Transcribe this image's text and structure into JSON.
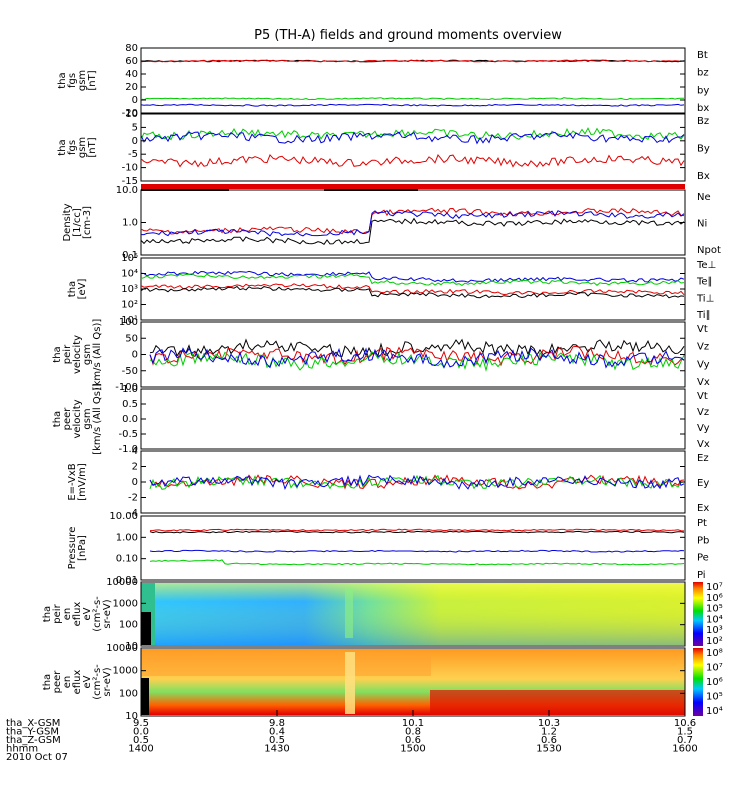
{
  "title": "P5 (TH-A) fields and ground moments overview",
  "colors": {
    "black": "#000000",
    "red": "#e00000",
    "green": "#00cc00",
    "blue": "#0000dd"
  },
  "chart_data": [
    {
      "type": "line",
      "panel": "fgs_gsm",
      "ylabel": [
        "tha",
        "fgs",
        "gsm",
        "[nT]"
      ],
      "yticks": [
        "80",
        "60",
        "40",
        "20",
        "0",
        "-20"
      ],
      "legend": [
        {
          "label": "Bt",
          "color": "black"
        },
        {
          "label": "bz",
          "color": "red"
        },
        {
          "label": "by",
          "color": "green"
        },
        {
          "label": "bx",
          "color": "blue"
        }
      ],
      "series": [
        {
          "name": "Bt",
          "level": 58
        },
        {
          "name": "bz",
          "level": 57
        },
        {
          "name": "by",
          "level": 2
        },
        {
          "name": "bx",
          "level": -3
        }
      ]
    },
    {
      "type": "line",
      "panel": "fgs_gsm_detail",
      "ylabel": [
        "tha",
        "fgs",
        "gsm",
        "[nT]"
      ],
      "yticks": [
        "10",
        "5",
        "0",
        "-5",
        "-10",
        "-15"
      ],
      "legend": [
        {
          "label": "Bz",
          "color": "red"
        },
        {
          "label": "By",
          "color": "green"
        },
        {
          "label": "Bx",
          "color": "blue"
        }
      ],
      "series": [
        {
          "name": "Bz",
          "level": -5
        },
        {
          "name": "By",
          "level": 1
        },
        {
          "name": "Bx",
          "level": 0
        }
      ]
    },
    {
      "type": "line",
      "panel": "density",
      "ylabel": [
        "Density",
        "[1/cc]",
        "[cm-3]"
      ],
      "yticks": [
        "10.0",
        "1.0",
        "0.1"
      ],
      "legend": [
        {
          "label": "Ne",
          "color": "red"
        },
        {
          "label": "Ni",
          "color": "black"
        },
        {
          "label": "Npot",
          "color": "blue"
        }
      ],
      "series": [
        {
          "name": "Ne",
          "level": 0.9
        },
        {
          "name": "Ni",
          "level": 0.5
        },
        {
          "name": "Npot",
          "level": 0.8
        }
      ]
    },
    {
      "type": "line",
      "panel": "temperature",
      "ylabel": [
        "tha",
        "[eV]"
      ],
      "yticks": [
        "10⁵",
        "10⁴",
        "10³",
        "10²",
        "10¹"
      ],
      "legend": [
        {
          "label": "Te⊥",
          "color": "red"
        },
        {
          "label": "Te∥",
          "color": "black"
        },
        {
          "label": "Ti⊥",
          "color": "blue"
        },
        {
          "label": "Ti∥",
          "color": "green"
        }
      ],
      "series": [
        {
          "name": "Te⊥",
          "level": 600
        },
        {
          "name": "Te∥",
          "level": 500
        },
        {
          "name": "Ti⊥",
          "level": 2500
        },
        {
          "name": "Ti∥",
          "level": 2000
        }
      ]
    },
    {
      "type": "line",
      "panel": "peir_velocity",
      "ylabel": [
        "tha",
        "peir",
        "velocity",
        "gsm",
        "[km/s (All Qs)]"
      ],
      "yticks": [
        "100",
        "50",
        "0",
        "-50",
        "-100"
      ],
      "legend": [
        {
          "label": "Vt",
          "color": "black"
        },
        {
          "label": "Vz",
          "color": "red"
        },
        {
          "label": "Vy",
          "color": "green"
        },
        {
          "label": "Vx",
          "color": "blue"
        }
      ],
      "series": [
        {
          "name": "Vt",
          "level": 20
        },
        {
          "name": "Vz",
          "level": 0
        },
        {
          "name": "Vy",
          "level": -5
        },
        {
          "name": "Vx",
          "level": 5
        }
      ]
    },
    {
      "type": "line",
      "panel": "peer_velocity",
      "ylabel": [
        "tha",
        "peer",
        "velocity",
        "gsm",
        "[km/s (All Qs)]"
      ],
      "yticks": [
        "1.0",
        "0.5",
        "0.0",
        "-0.5",
        "-1.0"
      ],
      "legend": [
        {
          "label": "Vt",
          "color": "black"
        },
        {
          "label": "Vz",
          "color": "red"
        },
        {
          "label": "Vy",
          "color": "green"
        },
        {
          "label": "Vx",
          "color": "blue"
        }
      ],
      "series": []
    },
    {
      "type": "line",
      "panel": "efield",
      "ylabel": [
        "E=-VxB",
        "[mV/m]"
      ],
      "yticks": [
        "4",
        "2",
        "0",
        "-2",
        "-4"
      ],
      "legend": [
        {
          "label": "Ez",
          "color": "red"
        },
        {
          "label": "Ey",
          "color": "green"
        },
        {
          "label": "Ex",
          "color": "blue"
        }
      ],
      "series": [
        {
          "name": "Ez",
          "level": 0
        },
        {
          "name": "Ey",
          "level": 0
        },
        {
          "name": "Ex",
          "level": 0
        }
      ]
    },
    {
      "type": "line",
      "panel": "pressure",
      "ylabel": [
        "Pressure",
        "[nPa]"
      ],
      "yticks": [
        "10.00",
        "1.00",
        "0.10",
        "0.01"
      ],
      "legend": [
        {
          "label": "Pt",
          "color": "black"
        },
        {
          "label": "Pb",
          "color": "red"
        },
        {
          "label": "Pe",
          "color": "green"
        },
        {
          "label": "Pi",
          "color": "blue"
        }
      ],
      "series": [
        {
          "name": "Pt",
          "level": 1.6
        },
        {
          "name": "Pb",
          "level": 1.4
        },
        {
          "name": "Pe",
          "level": 0.06
        },
        {
          "name": "Pi",
          "level": 0.15
        }
      ]
    },
    {
      "type": "heatmap",
      "panel": "peir_spectrogram",
      "ylabel": [
        "tha",
        "peir",
        "en",
        "eflux",
        "eV",
        "(cm²-s-",
        "sr-eV)"
      ],
      "yticks": [
        "10000",
        "1000",
        "100",
        "10"
      ],
      "colorbar": [
        "10⁷",
        "10⁶",
        "10⁵",
        "10⁴",
        "10³",
        "10²"
      ]
    },
    {
      "type": "heatmap",
      "panel": "peer_spectrogram",
      "ylabel": [
        "tha",
        "peer",
        "en",
        "eflux",
        "eV",
        "(cm²-s-",
        "sr-eV)"
      ],
      "yticks": [
        "10000",
        "1000",
        "100",
        "10"
      ],
      "colorbar": [
        "10⁸",
        "10⁷",
        "10⁶",
        "10⁵",
        "10⁴"
      ]
    }
  ],
  "xaxis": {
    "rows": [
      {
        "label": "tha_X-GSM",
        "values": [
          "9.5",
          "9.8",
          "10.1",
          "10.3",
          "10.6"
        ]
      },
      {
        "label": "tha_Y-GSM",
        "values": [
          "0.0",
          "0.4",
          "0.8",
          "1.2",
          "1.5"
        ]
      },
      {
        "label": "tha_Z-GSM",
        "values": [
          "0.5",
          "0.5",
          "0.6",
          "0.6",
          "0.7"
        ]
      },
      {
        "label": "hhmm",
        "values": [
          "1400",
          "1430",
          "1500",
          "1530",
          "1600"
        ]
      }
    ],
    "date": "2010 Oct 07"
  }
}
